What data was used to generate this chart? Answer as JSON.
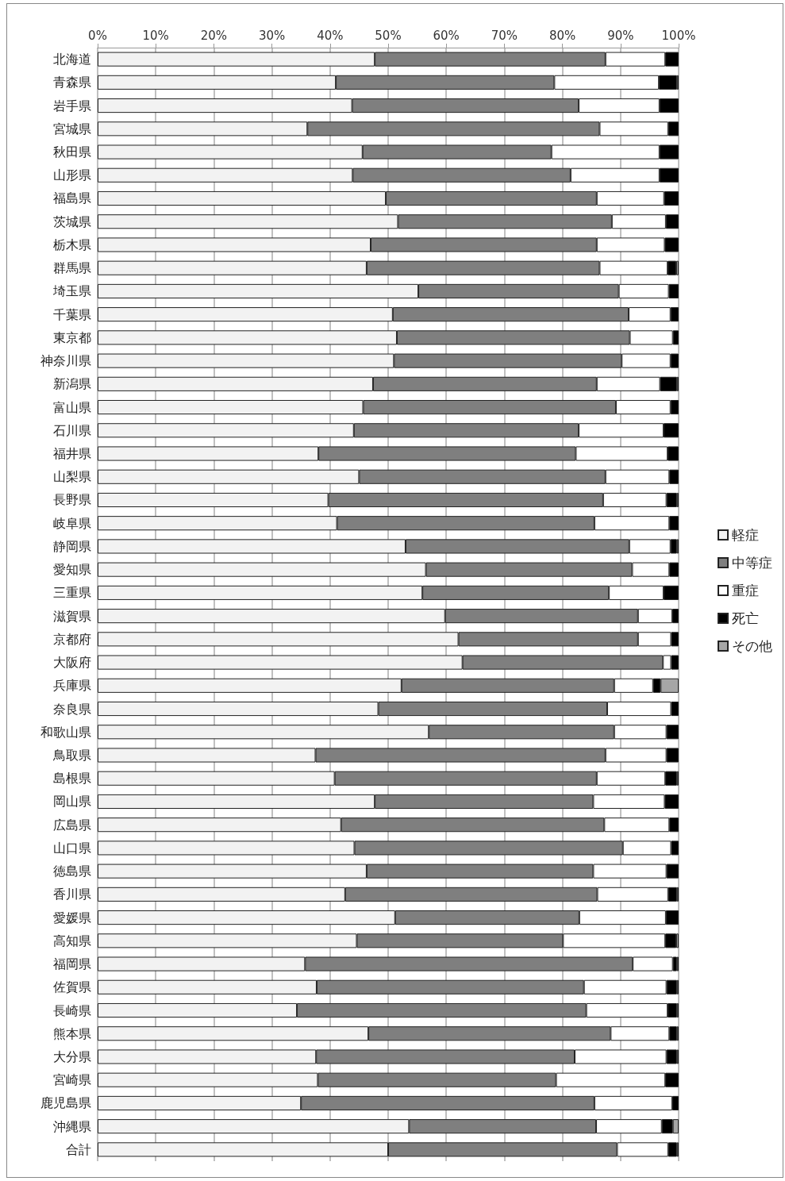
{
  "chart_data": {
    "type": "bar",
    "orientation": "horizontal",
    "stacked": true,
    "grid": "x",
    "legend": "right",
    "categories": [
      "北海道",
      "青森県",
      "岩手県",
      "宮城県",
      "秋田県",
      "山形県",
      "福島県",
      "茨城県",
      "栃木県",
      "群馬県",
      "埼玉県",
      "千葉県",
      "東京都",
      "神奈川県",
      "新潟県",
      "富山県",
      "石川県",
      "福井県",
      "山梨県",
      "長野県",
      "岐阜県",
      "静岡県",
      "愛知県",
      "三重県",
      "滋賀県",
      "京都府",
      "大阪府",
      "兵庫県",
      "奈良県",
      "和歌山県",
      "鳥取県",
      "島根県",
      "岡山県",
      "広島県",
      "山口県",
      "徳島県",
      "香川県",
      "愛媛県",
      "高知県",
      "福岡県",
      "佐賀県",
      "長崎県",
      "熊本県",
      "大分県",
      "宮崎県",
      "鹿児島県",
      "沖縄県",
      "合計"
    ],
    "xlim": [
      0,
      100
    ],
    "xticks": [
      {
        "value": 0,
        "label": "0%"
      },
      {
        "value": 10,
        "label": "10%"
      },
      {
        "value": 20,
        "label": "20%"
      },
      {
        "value": 30,
        "label": "30%"
      },
      {
        "value": 40,
        "label": "40%"
      },
      {
        "value": 50,
        "label": "50%"
      },
      {
        "value": 60,
        "label": "60%"
      },
      {
        "value": 70,
        "label": "70%"
      },
      {
        "value": 80,
        "label": "80%"
      },
      {
        "value": 90,
        "label": "90%"
      },
      {
        "value": 100,
        "label": "100%"
      }
    ],
    "series": [
      {
        "name": "軽症",
        "color": "#f2f2f2",
        "values": [
          47.7,
          41.0,
          43.8,
          36.1,
          45.6,
          43.9,
          49.6,
          51.7,
          47.0,
          46.3,
          55.2,
          50.8,
          51.5,
          51.0,
          47.4,
          45.7,
          44.1,
          38.0,
          45.0,
          39.7,
          41.2,
          53.0,
          56.5,
          55.9,
          59.8,
          62.1,
          62.8,
          52.3,
          48.3,
          57.0,
          37.5,
          40.8,
          47.7,
          41.9,
          44.2,
          46.3,
          42.6,
          51.2,
          44.6,
          35.7,
          37.7,
          34.3,
          46.6,
          37.6,
          37.9,
          35.0,
          53.6,
          50.0
        ]
      },
      {
        "name": "中等症",
        "color": "#7f7f7f",
        "values": [
          39.7,
          37.6,
          39.0,
          50.3,
          32.5,
          37.5,
          36.3,
          36.8,
          38.9,
          40.1,
          34.5,
          40.6,
          40.1,
          39.2,
          38.5,
          43.5,
          38.7,
          44.3,
          42.4,
          47.3,
          44.3,
          38.5,
          35.5,
          32.1,
          33.2,
          30.9,
          34.5,
          36.6,
          39.4,
          31.9,
          49.9,
          45.1,
          37.6,
          45.3,
          46.2,
          39.0,
          43.4,
          31.7,
          35.5,
          56.4,
          46.0,
          49.8,
          41.7,
          44.5,
          41.0,
          50.5,
          32.2,
          39.4
        ]
      },
      {
        "name": "重症",
        "color": "#ffffff",
        "values": [
          10.3,
          18.0,
          13.9,
          11.8,
          18.6,
          15.3,
          11.6,
          9.3,
          11.7,
          11.7,
          8.6,
          7.2,
          7.4,
          8.4,
          10.9,
          9.4,
          14.6,
          15.8,
          11.0,
          10.9,
          12.9,
          7.1,
          6.4,
          9.4,
          5.9,
          5.7,
          1.4,
          6.7,
          11.0,
          9.0,
          10.5,
          11.8,
          12.3,
          11.2,
          8.3,
          12.6,
          12.2,
          14.9,
          17.6,
          6.9,
          14.2,
          14.0,
          10.1,
          15.8,
          18.8,
          13.4,
          11.3,
          8.8
        ]
      },
      {
        "name": "死亡",
        "color": "#000000",
        "values": [
          2.3,
          3.1,
          3.3,
          1.8,
          3.3,
          3.3,
          2.5,
          2.2,
          2.4,
          1.5,
          1.7,
          1.4,
          1.0,
          1.4,
          2.9,
          1.4,
          2.6,
          1.9,
          1.6,
          1.8,
          1.6,
          1.1,
          1.6,
          2.6,
          1.1,
          1.3,
          1.3,
          1.3,
          1.3,
          2.1,
          2.1,
          2.0,
          2.4,
          1.6,
          1.3,
          2.1,
          1.5,
          2.2,
          1.9,
          0.7,
          1.8,
          1.6,
          1.3,
          1.8,
          2.3,
          1.1,
          1.9,
          1.5
        ]
      },
      {
        "name": "その他",
        "color": "#a6a6a6",
        "values": [
          0,
          0.3,
          0,
          0,
          0,
          0,
          0,
          0,
          0,
          0.4,
          0,
          0,
          0,
          0,
          0.3,
          0,
          0,
          0,
          0,
          0.3,
          0,
          0.3,
          0,
          0,
          0,
          0,
          0,
          3.1,
          0,
          0,
          0,
          0.3,
          0,
          0,
          0,
          0,
          0.3,
          0,
          0.4,
          0.3,
          0.3,
          0.3,
          0.3,
          0.3,
          0,
          0,
          1.0,
          0.3
        ]
      }
    ]
  }
}
